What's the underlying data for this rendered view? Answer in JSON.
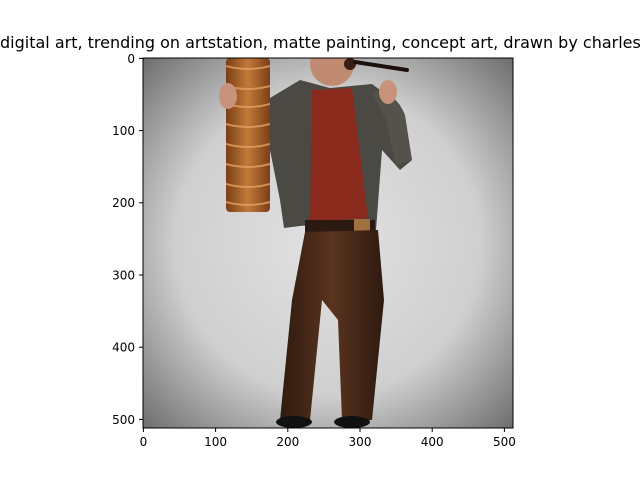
{
  "figure": {
    "title": "digital art, trending on artstation, matte painting, concept art, drawn by charles"
  },
  "axes": {
    "x_ticks": [
      "0",
      "100",
      "200",
      "300",
      "400",
      "500"
    ],
    "y_ticks": [
      "0",
      "100",
      "200",
      "300",
      "400",
      "500"
    ]
  },
  "image": {
    "subject": "painted figure of an old man in a dark jacket, red shirt and brown trousers, holding a tall wooden stack",
    "colors": {
      "background_center": "#dcdcdc",
      "background_edge": "#6a6a6a",
      "jacket": "#4b4944",
      "shirt": "#8a2a1c",
      "trousers": "#4a2a1a",
      "wood": "#a8622a",
      "skin": "#c8937a"
    }
  }
}
